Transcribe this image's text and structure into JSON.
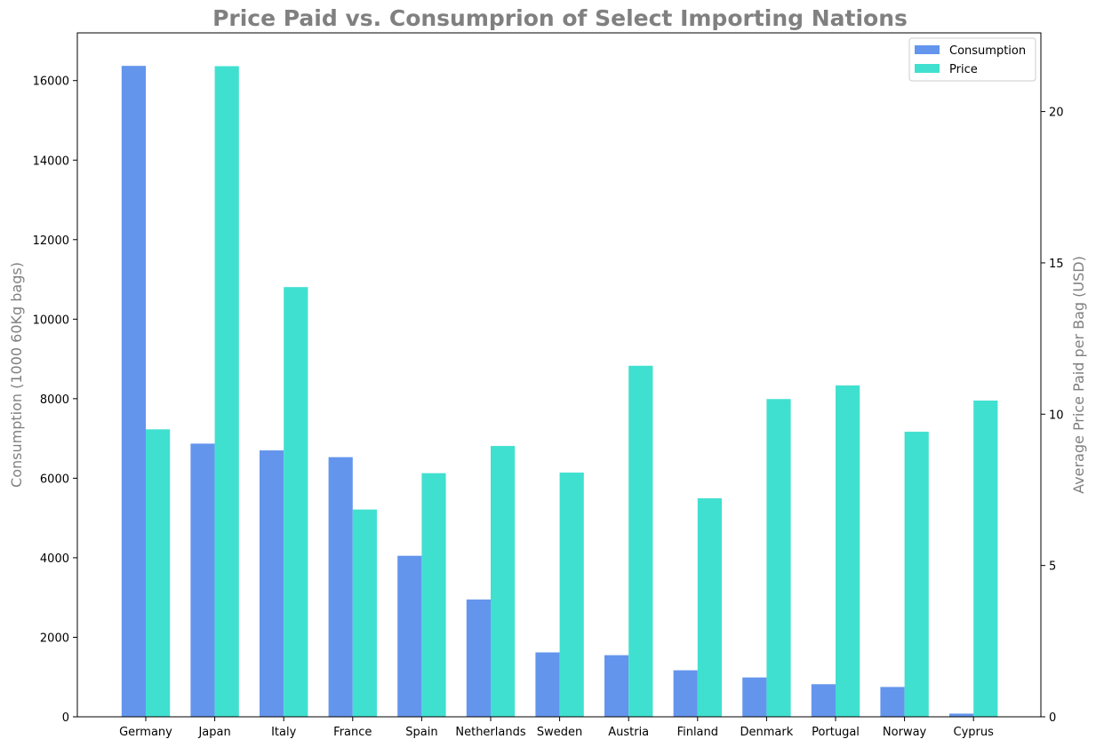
{
  "chart_data": {
    "type": "bar",
    "title": "Price Paid vs. Consumprion of Select Importing Nations",
    "categories": [
      "Germany",
      "Japan",
      "Italy",
      "France",
      "Spain",
      "Netherlands",
      "Sweden",
      "Austria",
      "Finland",
      "Denmark",
      "Portugal",
      "Norway",
      "Cyprus"
    ],
    "ylabel_left": "Consumption (1000 60Kg bags)",
    "ylabel_right": "Average Price Paid per Bag (USD)",
    "ylim_left": [
      0,
      17200
    ],
    "ylim_right": [
      0,
      22.6
    ],
    "yticks_left": [
      "0",
      "2000",
      "4000",
      "6000",
      "8000",
      "10000",
      "12000",
      "14000",
      "16000"
    ],
    "yticks_right": [
      "0",
      "5",
      "10",
      "15",
      "20"
    ],
    "grid": false,
    "legend_position": "top-right",
    "series": [
      {
        "name": "Consumption",
        "axis": "left",
        "color": "#6495ED",
        "values": [
          16370,
          6870,
          6700,
          6530,
          4050,
          2950,
          1620,
          1550,
          1170,
          990,
          820,
          750,
          80
        ]
      },
      {
        "name": "Price",
        "axis": "right",
        "color": "#40E0D0",
        "values": [
          9.5,
          21.5,
          14.2,
          6.85,
          8.05,
          8.95,
          8.07,
          11.6,
          7.22,
          10.5,
          10.95,
          9.42,
          10.45
        ]
      }
    ]
  }
}
